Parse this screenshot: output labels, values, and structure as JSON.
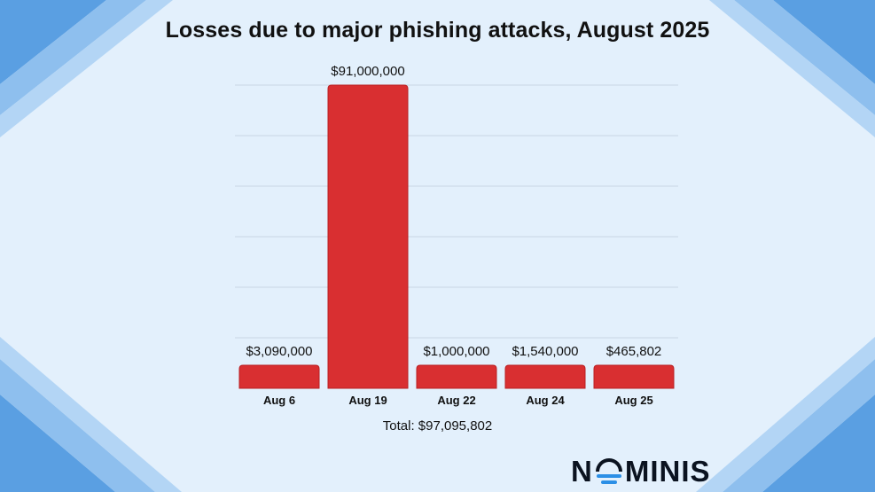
{
  "chart_data": {
    "type": "bar",
    "title": "Losses due to major phishing attacks, August 2025",
    "categories": [
      "Aug 6",
      "Aug 19",
      "Aug 22",
      "Aug 24",
      "Aug 25"
    ],
    "values": [
      3090000,
      91000000,
      1000000,
      1540000,
      465802
    ],
    "data_labels": [
      "$3,090,000",
      "$91,000,000",
      "$1,000,000",
      "$1,540,000",
      "$465,802"
    ],
    "xlabel": "",
    "ylabel": "",
    "grid": true,
    "legend": "none",
    "bar_color": "#d92f31",
    "annotation": "Total: $97,095,802"
  },
  "brand": {
    "logo_text_start": "N",
    "logo_text_end": "MINIS",
    "accent_color": "#2b8fe6"
  }
}
